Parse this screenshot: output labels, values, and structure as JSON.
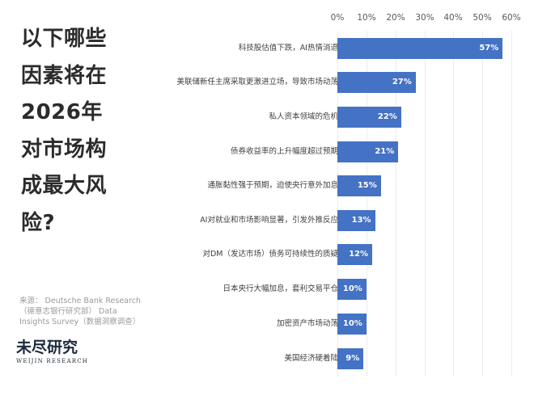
{
  "title_lines": [
    "以下哪些",
    "因素将在",
    "2026年",
    "对市场构",
    "成最大风",
    "险?"
  ],
  "source": "来源： Deutsche Bank Research（德意志银行研究部） Data Insights Survey（数据洞察调查）",
  "logo": {
    "cn": "未尽研究",
    "en": "WEIJIN RESEARCH"
  },
  "colors": {
    "bar": "#4472c4",
    "title": "#2b2b2b",
    "gridline": "#ececec"
  },
  "chart_data": {
    "type": "bar",
    "orientation": "horizontal",
    "title": "以下哪些因素将在2026年对市场构成最大风险?",
    "xlabel": "",
    "ylabel": "",
    "xlim": [
      0,
      60
    ],
    "x_ticks": [
      "0%",
      "10%",
      "20%",
      "30%",
      "40%",
      "50%",
      "60%"
    ],
    "x_tick_values": [
      0,
      10,
      20,
      30,
      40,
      50,
      60
    ],
    "grid": true,
    "legend": null,
    "categories": [
      "科技股估值下跌，AI热情消退",
      "美联储新任主席采取更激进立场，导致市场动荡",
      "私人资本领域的危机",
      "债券收益率的上升幅度超过预期",
      "通胀黏性强于预期，迫使央行意外加息",
      "AI对就业和市场影响显著，引发外推反应",
      "对DM（发达市场）债务可持续性的质疑",
      "日本央行大幅加息，套利交易平仓",
      "加密资产市场动荡",
      "美国经济硬着陆"
    ],
    "values": [
      57,
      27,
      22,
      21,
      15,
      13,
      12,
      10,
      10,
      9
    ],
    "value_labels": [
      "57%",
      "27%",
      "22%",
      "21%",
      "15%",
      "13%",
      "12%",
      "10%",
      "10%",
      "9%"
    ]
  }
}
